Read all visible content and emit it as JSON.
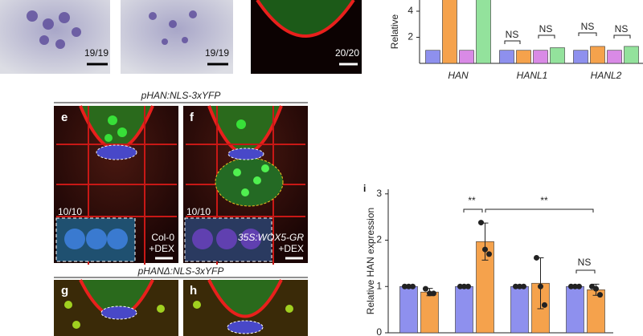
{
  "panels": {
    "top_counts": [
      "19/19",
      "19/19",
      "20/20"
    ],
    "header_1": "pHAN:NLS-3xYFP",
    "header_2": "pHANΔ:NLS-3xYFP",
    "e": {
      "letter": "e",
      "count": "10/10",
      "genotype": "Col-0",
      "treatment": "+DEX"
    },
    "f": {
      "letter": "f",
      "count": "10/10",
      "genotype": "35S:WOX5-GR",
      "treatment": "+DEX"
    },
    "g": {
      "letter": "g"
    },
    "h": {
      "letter": "h"
    },
    "i": {
      "letter": "i"
    }
  },
  "chart_data": [
    {
      "type": "bar",
      "ylabel": "Relative",
      "categories": [
        "HAN",
        "HANL1",
        "HANL2"
      ],
      "series": [
        {
          "color": "#8e90ee",
          "values": [
            1,
            1,
            1
          ]
        },
        {
          "color": "#f5a24c",
          "values": [
            5,
            1,
            1.3
          ]
        },
        {
          "color": "#d98ae6",
          "values": [
            1,
            1,
            1
          ]
        },
        {
          "color": "#93e29c",
          "values": [
            5,
            1.2,
            1.3
          ]
        }
      ],
      "ylim": [
        0,
        4.86
      ],
      "yticks": [
        2,
        4
      ],
      "annotations": [
        "NS",
        "NS",
        "NS",
        "NS"
      ]
    },
    {
      "type": "bar",
      "ylabel": "Relative HAN expression",
      "categories": [
        null,
        null,
        null,
        null
      ],
      "series": [
        {
          "color": "#8e90ee",
          "values": [
            1,
            1,
            1,
            1
          ],
          "points": [
            [
              1,
              1,
              1
            ],
            [
              1,
              1,
              1
            ],
            [
              1,
              1,
              1
            ],
            [
              1,
              1,
              1
            ]
          ]
        },
        {
          "color": "#f5a24c",
          "values": [
            0.88,
            1.97,
            1.07,
            0.93
          ],
          "errors": [
            0.08,
            0.4,
            0.55,
            0.12
          ],
          "points": [
            [
              0.95,
              0.85,
              0.85
            ],
            [
              2.38,
              1.8,
              1.7
            ],
            [
              1.62,
              1.0,
              0.6
            ],
            [
              1.0,
              0.95,
              0.82
            ]
          ]
        }
      ],
      "ylim": [
        0,
        3.1
      ],
      "yticks": [
        0,
        1,
        2,
        3
      ],
      "annotations": [
        "**",
        "**",
        "NS"
      ]
    }
  ]
}
